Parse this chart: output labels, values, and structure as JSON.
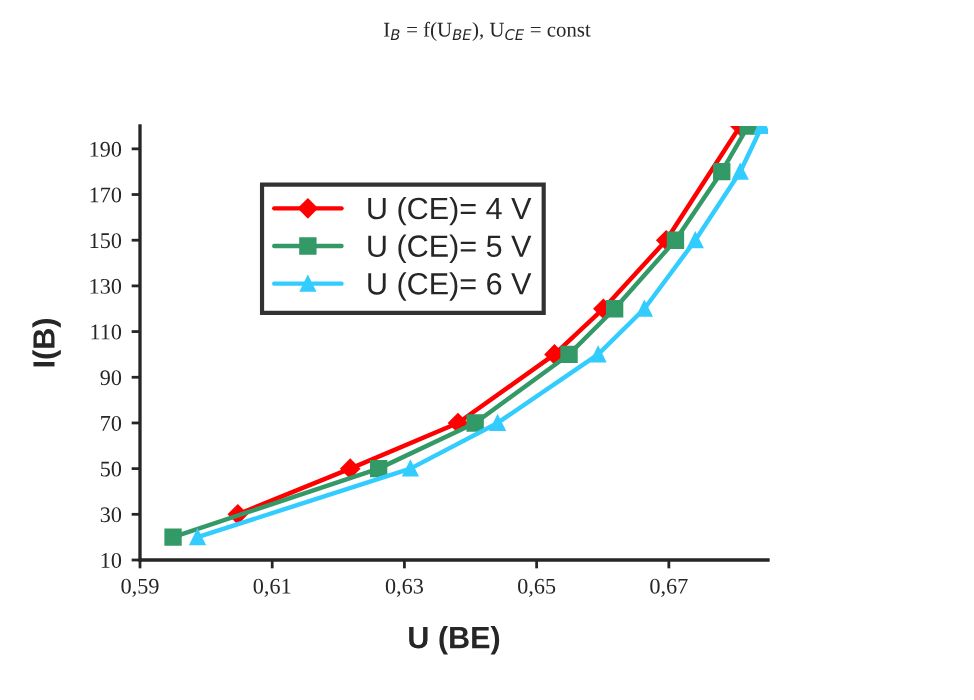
{
  "chart_data": {
    "type": "line",
    "title": "I$_{B}$ = f(U$_{BE}$), U$_{CE}$ = const",
    "xlabel": "U (BE)",
    "ylabel": "I(B)",
    "series": [
      {
        "name": "U (CE)= 4 V",
        "color": "#ff0000",
        "marker": "diamond",
        "x": [
          0.6048,
          0.6218,
          0.6381,
          0.6527,
          0.6601,
          0.6696,
          0.6808
        ],
        "values": [
          30,
          50,
          70,
          100,
          120,
          150,
          200
        ]
      },
      {
        "name": "U (CE)= 5 V",
        "color": "#339966",
        "marker": "square",
        "x": [
          0.595,
          0.6261,
          0.6407,
          0.6549,
          0.6618,
          0.671,
          0.678,
          0.682
        ],
        "values": [
          20,
          50,
          70,
          100,
          120,
          150,
          180,
          200
        ]
      },
      {
        "name": "U (CE)= 6 V",
        "color": "#33ccff",
        "marker": "triangle",
        "x": [
          0.5987,
          0.6309,
          0.6441,
          0.6593,
          0.6663,
          0.674,
          0.6808,
          0.6841
        ],
        "values": [
          20,
          50,
          70,
          100,
          120,
          150,
          180,
          200
        ]
      }
    ],
    "xlim": [
      0.59,
      0.685
    ],
    "ylim": [
      10,
      200
    ],
    "xticks": [
      {
        "value": 0.59,
        "label": "0,59"
      },
      {
        "value": 0.61,
        "label": "0,61"
      },
      {
        "value": 0.63,
        "label": "0,63"
      },
      {
        "value": 0.65,
        "label": "0,65"
      },
      {
        "value": 0.67,
        "label": "0,67"
      }
    ],
    "yticks": [
      10,
      30,
      50,
      70,
      90,
      110,
      130,
      150,
      170,
      190
    ],
    "grid": false,
    "legend": "top left",
    "line_style": "solid"
  }
}
